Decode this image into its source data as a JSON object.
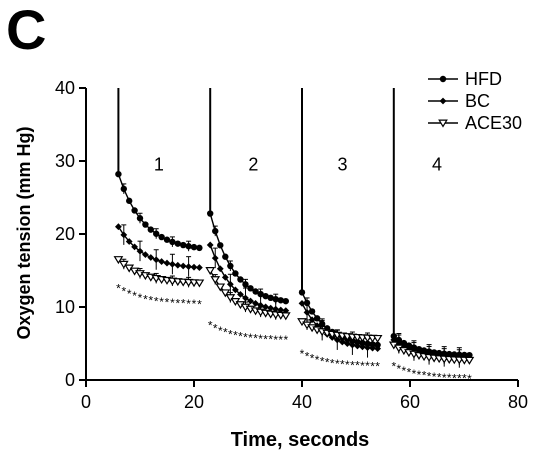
{
  "panel_label": "C",
  "chart_data": {
    "type": "line",
    "title": "",
    "xlabel": "Time, seconds",
    "ylabel": "Oxygen tension (mm Hg)",
    "xlim": [
      0,
      80
    ],
    "ylim": [
      0,
      40
    ],
    "xticks": [
      0,
      20,
      40,
      60,
      80
    ],
    "yticks": [
      0,
      10,
      20,
      30,
      40
    ],
    "grid": false,
    "legend_position": "top-right",
    "phase_labels": [
      {
        "text": "1",
        "x": 13.5,
        "y": 29.5
      },
      {
        "text": "2",
        "x": 31,
        "y": 29.5
      },
      {
        "text": "3",
        "x": 47.5,
        "y": 29.5
      },
      {
        "text": "4",
        "x": 65,
        "y": 29.5
      }
    ],
    "injections": [
      {
        "x": 6,
        "y_top": 40,
        "y_bottom": 28.2
      },
      {
        "x": 23,
        "y_top": 40,
        "y_bottom": 22.8
      },
      {
        "x": 40,
        "y_top": 40,
        "y_bottom": 12
      },
      {
        "x": 57,
        "y_top": 40,
        "y_bottom": 6
      }
    ],
    "segments": [
      {
        "start": 6,
        "end": 21
      },
      {
        "start": 23,
        "end": 37
      },
      {
        "start": 40,
        "end": 54
      },
      {
        "start": 57,
        "end": 71
      }
    ],
    "series": [
      {
        "name": "HFD",
        "marker": "circle",
        "phases": [
          {
            "y0": 28.2,
            "y1": 18.1
          },
          {
            "y0": 22.8,
            "y1": 10.8
          },
          {
            "y0": 12.0,
            "y1": 4.8
          },
          {
            "y0": 6.0,
            "y1": 3.4
          }
        ]
      },
      {
        "name": "BC",
        "marker": "diamond",
        "phases": [
          {
            "y0": 21.0,
            "y1": 15.4
          },
          {
            "y0": 18.5,
            "y1": 9.5
          },
          {
            "y0": 10.5,
            "y1": 4.3
          },
          {
            "y0": 5.5,
            "y1": 3.0
          }
        ]
      },
      {
        "name": "ACE30",
        "marker": "triangle-down",
        "phases": [
          {
            "y0": 16.5,
            "y1": 13.3
          },
          {
            "y0": 15.0,
            "y1": 8.8
          },
          {
            "y0": 8.0,
            "y1": 5.7
          },
          {
            "y0": 4.8,
            "y1": 2.7
          }
        ]
      },
      {
        "name": "",
        "marker": "star",
        "phases": [
          {
            "y0": 12.7,
            "y1": 10.5
          },
          {
            "y0": 7.6,
            "y1": 5.6
          },
          {
            "y0": 3.7,
            "y1": 2.0
          },
          {
            "y0": 2.0,
            "y1": 0.3
          }
        ]
      }
    ]
  }
}
